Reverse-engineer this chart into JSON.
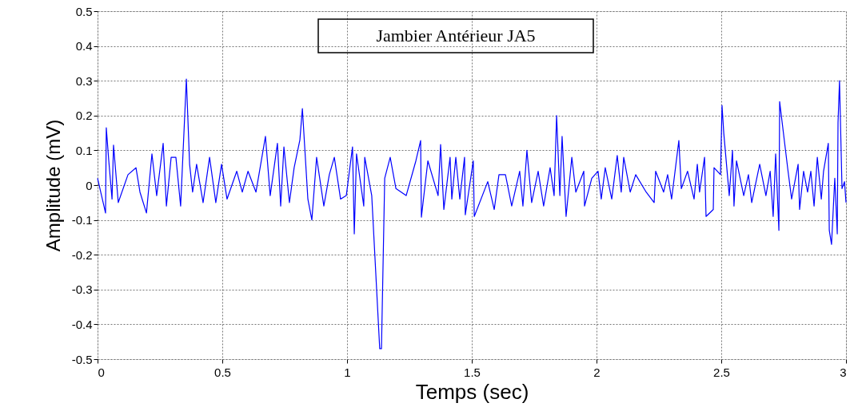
{
  "chart_data": {
    "type": "line",
    "title": "Jambier Antérieur JA5",
    "xlabel": "Temps (sec)",
    "ylabel": "Amplitude (mV)",
    "xlim": [
      0,
      3
    ],
    "xticks": [
      0,
      0.5,
      1,
      1.5,
      2,
      2.5,
      3
    ],
    "ylim": [
      -0.5,
      0.5
    ],
    "yticks": [
      -0.5,
      -0.4,
      -0.3,
      -0.2,
      -0.1,
      0,
      0.1,
      0.2,
      0.3,
      0.4,
      0.5
    ],
    "grid": true,
    "marker": "none",
    "line_style": "solid",
    "series": [
      {
        "color": "#0000ff",
        "x": [
          0.0,
          0.016,
          0.032,
          0.035,
          0.045,
          0.058,
          0.064,
          0.083,
          0.122,
          0.154,
          0.17,
          0.196,
          0.218,
          0.237,
          0.263,
          0.276,
          0.295,
          0.314,
          0.333,
          0.356,
          0.369,
          0.381,
          0.397,
          0.423,
          0.449,
          0.474,
          0.497,
          0.519,
          0.558,
          0.58,
          0.603,
          0.635,
          0.673,
          0.692,
          0.721,
          0.734,
          0.747,
          0.769,
          0.788,
          0.811,
          0.821,
          0.843,
          0.859,
          0.878,
          0.907,
          0.929,
          0.949,
          0.974,
          0.997,
          1.022,
          1.029,
          1.038,
          1.067,
          1.071,
          1.099,
          1.131,
          1.138,
          1.151,
          1.173,
          1.196,
          1.237,
          1.276,
          1.295,
          1.298,
          1.324,
          1.365,
          1.375,
          1.388,
          1.413,
          1.42,
          1.436,
          1.452,
          1.471,
          1.474,
          1.506,
          1.51,
          1.564,
          1.59,
          1.609,
          1.635,
          1.66,
          1.692,
          1.705,
          1.721,
          1.74,
          1.766,
          1.788,
          1.814,
          1.83,
          1.84,
          1.853,
          1.862,
          1.878,
          1.901,
          1.917,
          1.949,
          1.952,
          1.981,
          2.006,
          2.019,
          2.035,
          2.061,
          2.083,
          2.099,
          2.109,
          2.135,
          2.157,
          2.199,
          2.231,
          2.237,
          2.269,
          2.285,
          2.301,
          2.33,
          2.34,
          2.365,
          2.391,
          2.404,
          2.413,
          2.433,
          2.439,
          2.468,
          2.471,
          2.497,
          2.503,
          2.51,
          2.532,
          2.545,
          2.551,
          2.561,
          2.59,
          2.609,
          2.622,
          2.654,
          2.679,
          2.696,
          2.708,
          2.718,
          2.731,
          2.734,
          2.766,
          2.782,
          2.808,
          2.814,
          2.83,
          2.846,
          2.859,
          2.872,
          2.885,
          2.901,
          2.91,
          2.929,
          2.933,
          2.942,
          2.955,
          2.965,
          2.968,
          2.974,
          2.984,
          2.994,
          3.0
        ],
        "values": [
          0.02,
          -0.03,
          -0.08,
          0.165,
          0.07,
          -0.04,
          0.115,
          -0.05,
          0.03,
          0.05,
          -0.02,
          -0.08,
          0.09,
          -0.03,
          0.12,
          -0.06,
          0.08,
          0.08,
          -0.06,
          0.305,
          0.06,
          -0.02,
          0.06,
          -0.05,
          0.08,
          -0.05,
          0.06,
          -0.04,
          0.04,
          -0.02,
          0.04,
          -0.02,
          0.14,
          -0.03,
          0.12,
          -0.06,
          0.11,
          -0.05,
          0.05,
          0.13,
          0.22,
          -0.04,
          -0.1,
          0.08,
          -0.06,
          0.03,
          0.08,
          -0.04,
          -0.03,
          0.11,
          -0.14,
          0.09,
          -0.06,
          0.08,
          -0.03,
          -0.47,
          -0.47,
          0.02,
          0.08,
          -0.01,
          -0.03,
          0.07,
          0.128,
          -0.092,
          0.07,
          -0.03,
          0.117,
          -0.07,
          0.08,
          -0.04,
          0.08,
          -0.04,
          0.08,
          -0.085,
          0.07,
          -0.09,
          0.01,
          -0.07,
          0.03,
          0.03,
          -0.06,
          0.04,
          -0.06,
          0.1,
          -0.05,
          0.04,
          -0.06,
          0.05,
          -0.03,
          0.2,
          -0.03,
          0.14,
          -0.09,
          0.08,
          -0.02,
          0.04,
          -0.06,
          0.02,
          0.04,
          -0.04,
          0.05,
          -0.04,
          0.085,
          -0.02,
          0.08,
          -0.02,
          0.03,
          -0.02,
          -0.05,
          0.04,
          -0.02,
          0.03,
          -0.04,
          0.128,
          -0.01,
          0.04,
          -0.04,
          0.06,
          -0.02,
          0.08,
          -0.09,
          -0.07,
          0.05,
          0.03,
          0.229,
          0.15,
          -0.03,
          0.1,
          -0.06,
          0.07,
          -0.03,
          0.03,
          -0.05,
          0.06,
          -0.03,
          0.04,
          -0.09,
          0.09,
          -0.13,
          0.24,
          0.05,
          -0.04,
          0.06,
          -0.07,
          0.04,
          -0.02,
          0.04,
          -0.06,
          0.08,
          -0.04,
          0.04,
          0.12,
          -0.13,
          -0.17,
          0.02,
          -0.14,
          0.18,
          0.3,
          -0.01,
          0.01,
          -0.05
        ]
      }
    ]
  }
}
